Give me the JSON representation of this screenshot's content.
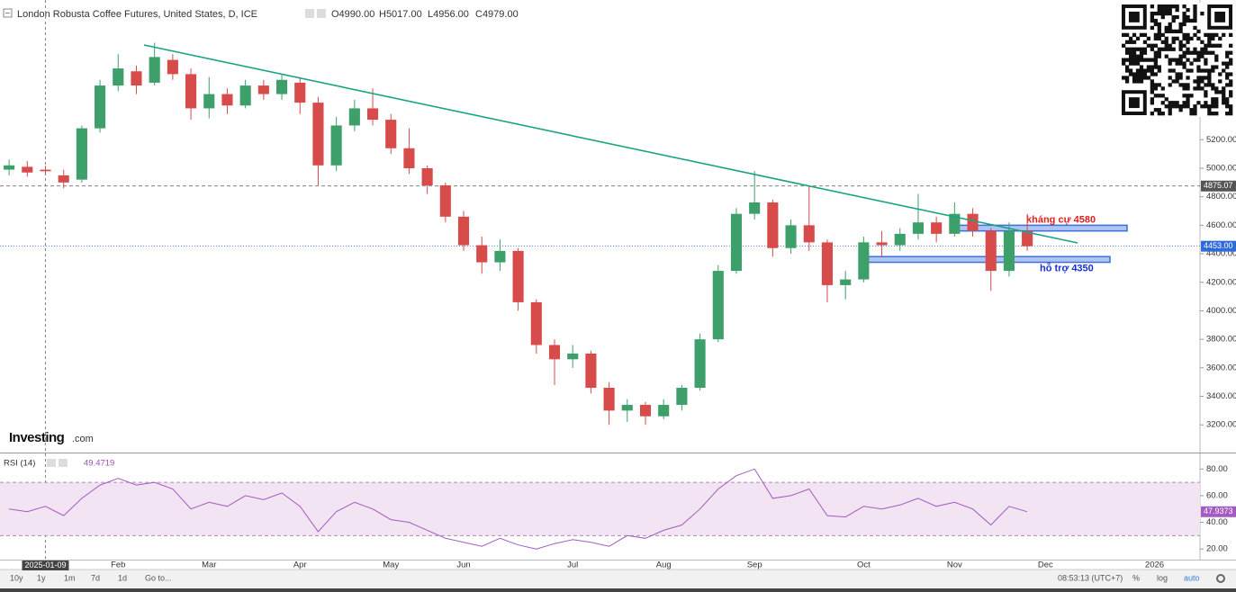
{
  "chart_data": [
    {
      "type": "candlestick",
      "title": "London Robusta Coffee Futures, United States, D, ICE",
      "ohlc_labels": [
        "O4990.00",
        "H5017.00",
        "L4956.00",
        "C4979.00"
      ],
      "categories": [
        null,
        null,
        null,
        null,
        null,
        null,
        "Feb",
        null,
        null,
        null,
        null,
        "Mar",
        null,
        null,
        null,
        null,
        "Apr",
        null,
        null,
        null,
        null,
        "May",
        null,
        null,
        null,
        "Jun",
        null,
        null,
        null,
        null,
        null,
        "Jul",
        null,
        null,
        null,
        null,
        "Aug",
        null,
        null,
        null,
        null,
        "Sep",
        null,
        null,
        null,
        null,
        null,
        "Oct",
        null,
        null,
        null,
        null,
        "Nov",
        null,
        null,
        null,
        null,
        "Dec",
        null,
        null,
        null,
        null,
        null,
        "2026",
        null,
        null
      ],
      "open": [
        4990,
        5010,
        4990,
        4950,
        4920,
        5280,
        5580,
        5680,
        5600,
        5760,
        5660,
        5420,
        5520,
        5440,
        5580,
        5520,
        5600,
        5460,
        5020,
        5300,
        5420,
        5340,
        5140,
        5000,
        4880,
        4660,
        4460,
        4340,
        4420,
        4060,
        3760,
        3660,
        3700,
        3460,
        3300,
        3340,
        3260,
        3340,
        3460,
        3800,
        4280,
        4680,
        4760,
        4440,
        4600,
        4480,
        4180,
        4220,
        4480,
        4460,
        4540,
        4620,
        4540,
        4680,
        4560,
        4280,
        4560,
        null,
        null,
        null,
        null,
        null,
        null,
        null,
        null,
        null
      ],
      "high": [
        5060,
        5050,
        5017,
        4990,
        5300,
        5620,
        5800,
        5720,
        5880,
        5800,
        5700,
        5640,
        5560,
        5620,
        5620,
        5660,
        5640,
        5500,
        5360,
        5480,
        5560,
        5380,
        5280,
        5020,
        4900,
        4700,
        4520,
        4500,
        4440,
        4080,
        3800,
        3760,
        3720,
        3500,
        3380,
        3360,
        3380,
        3480,
        3840,
        4320,
        4720,
        4980,
        4780,
        4640,
        4880,
        4500,
        4280,
        4520,
        4560,
        4580,
        4820,
        4660,
        4760,
        4720,
        4580,
        4620,
        4680,
        null,
        null,
        null,
        null,
        null,
        null,
        null,
        null,
        null
      ],
      "low": [
        4950,
        4940,
        4956,
        4860,
        4900,
        5250,
        5540,
        5520,
        5580,
        5620,
        5340,
        5350,
        5380,
        5420,
        5480,
        5480,
        5380,
        4880,
        4980,
        5260,
        5300,
        5100,
        4960,
        4820,
        4620,
        4420,
        4260,
        4280,
        4000,
        3700,
        3480,
        3600,
        3420,
        3200,
        3220,
        3200,
        3240,
        3300,
        3440,
        3780,
        4260,
        4640,
        4380,
        4400,
        4420,
        4060,
        4080,
        4200,
        4380,
        4420,
        4500,
        4480,
        4520,
        4520,
        4140,
        4240,
        4420,
        null,
        null,
        null,
        null,
        null,
        null,
        null,
        null,
        null
      ],
      "close": [
        5020,
        4970,
        4979,
        4900,
        5280,
        5580,
        5700,
        5580,
        5780,
        5660,
        5420,
        5520,
        5440,
        5580,
        5520,
        5620,
        5460,
        5020,
        5300,
        5420,
        5340,
        5140,
        5000,
        4880,
        4660,
        4460,
        4340,
        4420,
        4060,
        3760,
        3660,
        3700,
        3460,
        3300,
        3340,
        3260,
        3340,
        3460,
        3800,
        4280,
        4680,
        4760,
        4440,
        4600,
        4480,
        4180,
        4220,
        4480,
        4460,
        4540,
        4620,
        4540,
        4680,
        4560,
        4280,
        4560,
        4453,
        null,
        null,
        null,
        null,
        null,
        null,
        null,
        null,
        null
      ],
      "up_color": "#3da06a",
      "down_color": "#d84b4b",
      "ylim": [
        3012,
        6180
      ],
      "yticks": [
        {
          "value": 3200,
          "label": "3200.00"
        },
        {
          "value": 3400,
          "label": "3400.00"
        },
        {
          "value": 3600,
          "label": "3600.00"
        },
        {
          "value": 3800,
          "label": "3800.00"
        },
        {
          "value": 4000,
          "label": "4000.00"
        },
        {
          "value": 4200,
          "label": "4200.00"
        },
        {
          "value": 4400,
          "label": "4400.00"
        },
        {
          "value": 4600,
          "label": "4600.00"
        },
        {
          "value": 4800,
          "label": "4800.00"
        },
        {
          "value": 5000,
          "label": "5000.00"
        },
        {
          "value": 5200,
          "label": "5200.00"
        }
      ],
      "price_lines": [
        {
          "value": 4875.07,
          "label": "4875.07",
          "color": "#555555"
        },
        {
          "value": 4453,
          "label": "4453.00",
          "color": "#2f6ad9"
        }
      ],
      "zones": [
        {
          "label": "kháng cự 4580",
          "range": [
            4560,
            4600
          ],
          "label_color": "#e02020"
        },
        {
          "label": "hỗ trợ 4350",
          "range": [
            4340,
            4380
          ],
          "label_color": "#1a2fd0"
        }
      ],
      "trendline_color": "#1aa383",
      "crosshair_label": "2025-01-09",
      "brand": [
        "Investing",
        ".com"
      ]
    },
    {
      "type": "line",
      "title": "RSI (14)",
      "readout": 49.4719,
      "color": "#a35bc0",
      "band": [
        30,
        70
      ],
      "band_color": "#f2e4f2",
      "values": [
        50,
        48,
        52,
        45,
        58,
        68,
        73,
        68,
        70,
        65,
        50,
        55,
        52,
        60,
        57,
        62,
        52,
        33,
        48,
        55,
        50,
        42,
        40,
        34,
        28,
        25,
        22,
        28,
        23,
        20,
        24,
        27,
        25,
        22,
        30,
        28,
        34,
        38,
        50,
        65,
        75,
        80,
        58,
        60,
        65,
        45,
        44,
        52,
        50,
        53,
        58,
        52,
        55,
        50,
        38,
        52,
        47.9373,
        null,
        null,
        null,
        null,
        null,
        null,
        null,
        null,
        null
      ],
      "ylim": [
        12,
        91
      ],
      "yticks": [
        {
          "value": 20,
          "label": "20.00"
        },
        {
          "value": 40,
          "label": "40.00"
        },
        {
          "value": 60,
          "label": "60.00"
        },
        {
          "value": 80,
          "label": "80.00"
        }
      ]
    }
  ],
  "toolbar": {
    "ranges": [
      "10y",
      "1y",
      "1m",
      "7d",
      "1d"
    ],
    "goto": "Go to...",
    "time": "08:53:13 (UTC+7)",
    "options": [
      "%",
      "log",
      "auto"
    ]
  }
}
